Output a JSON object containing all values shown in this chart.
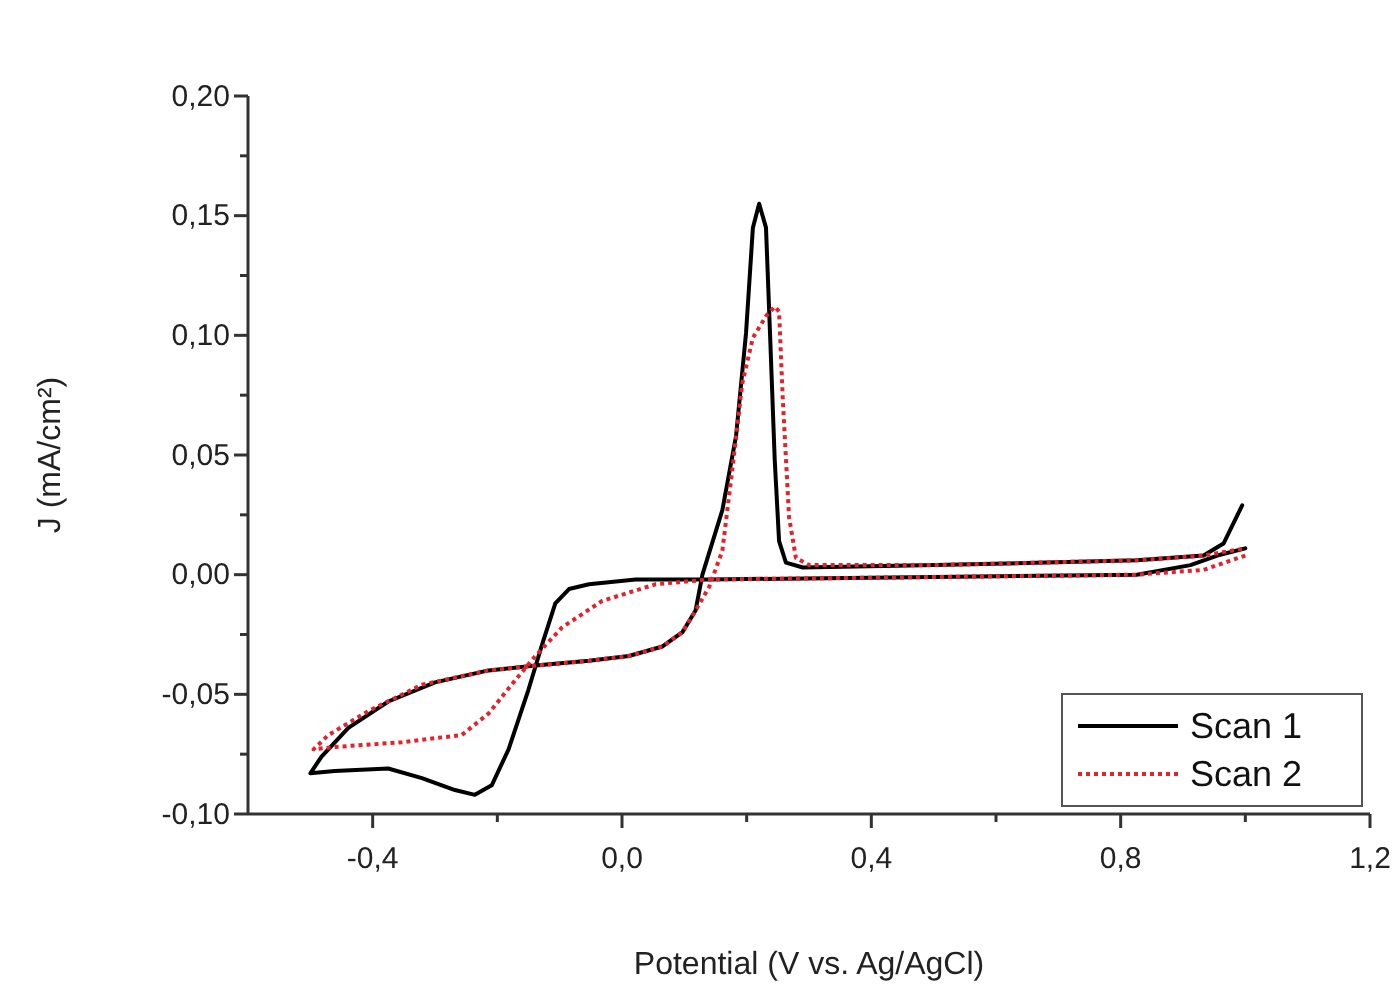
{
  "chart_data": {
    "type": "line",
    "xlabel": "Potential (V vs. Ag/AgCl)",
    "ylabel": "J (mA/cm²)",
    "xlim": [
      -0.6,
      1.2
    ],
    "ylim": [
      -0.1,
      0.2
    ],
    "xticks": [
      {
        "value": -0.4,
        "label": "-0,4"
      },
      {
        "value": -0.2,
        "label": null
      },
      {
        "value": 0,
        "label": "0,0"
      },
      {
        "value": 0.2,
        "label": null
      },
      {
        "value": 0.4,
        "label": "0,4"
      },
      {
        "value": 0.6,
        "label": null
      },
      {
        "value": 0.8,
        "label": "0,8"
      },
      {
        "value": 1.0,
        "label": null
      },
      {
        "value": 1.2,
        "label": "1,2"
      }
    ],
    "yticks": [
      {
        "value": -0.1,
        "label": "-0,10"
      },
      {
        "value": -0.075,
        "label": null
      },
      {
        "value": -0.05,
        "label": "-0,05"
      },
      {
        "value": -0.025,
        "label": null
      },
      {
        "value": 0,
        "label": "0,00"
      },
      {
        "value": 0.025,
        "label": null
      },
      {
        "value": 0.05,
        "label": "0,05"
      },
      {
        "value": 0.075,
        "label": null
      },
      {
        "value": 0.1,
        "label": "0,10"
      },
      {
        "value": 0.125,
        "label": null
      },
      {
        "value": 0.15,
        "label": "0,15"
      },
      {
        "value": 0.175,
        "label": null
      },
      {
        "value": 0.2,
        "label": "0,20"
      }
    ],
    "grid": false,
    "legend": "bottom right",
    "marker": "none",
    "series": [
      {
        "name": "Scan 1",
        "color": "#000000",
        "line_style": "solid",
        "x": [
          1.0,
          0.955,
          0.912,
          0.826,
          0.5,
          0.14,
          0.022,
          -0.053,
          -0.085,
          -0.107,
          -0.128,
          -0.15,
          -0.182,
          -0.209,
          -0.236,
          -0.268,
          -0.321,
          -0.375,
          -0.461,
          -0.5,
          -0.482,
          -0.439,
          -0.375,
          -0.3,
          -0.214,
          -0.139,
          -0.053,
          0.011,
          0.065,
          0.097,
          0.118,
          0.129,
          0.161,
          0.183,
          0.199,
          0.21,
          0.22,
          0.231,
          0.238,
          0.245,
          0.252,
          0.263,
          0.29,
          0.504,
          0.826,
          0.933,
          0.965,
          0.995
        ],
        "values": [
          0.011,
          0.008,
          0.004,
          0.0,
          -0.001,
          -0.002,
          -0.002,
          -0.004,
          -0.006,
          -0.012,
          -0.029,
          -0.048,
          -0.073,
          -0.088,
          -0.092,
          -0.09,
          -0.085,
          -0.081,
          -0.082,
          -0.083,
          -0.076,
          -0.064,
          -0.053,
          -0.045,
          -0.04,
          -0.038,
          -0.036,
          -0.034,
          -0.03,
          -0.024,
          -0.015,
          0.0,
          0.027,
          0.058,
          0.101,
          0.145,
          0.155,
          0.145,
          0.097,
          0.048,
          0.014,
          0.005,
          0.003,
          0.004,
          0.006,
          0.008,
          0.013,
          0.029
        ]
      },
      {
        "name": "Scan 2",
        "color": "#e8202a",
        "line_style": "dotted",
        "x": [
          1.0,
          0.933,
          0.826,
          0.5,
          0.14,
          0.054,
          -0.032,
          -0.096,
          -0.139,
          -0.171,
          -0.214,
          -0.257,
          -0.353,
          -0.461,
          -0.495,
          -0.471,
          -0.407,
          -0.321,
          -0.214,
          -0.139,
          -0.053,
          0.011,
          0.065,
          0.097,
          0.118,
          0.14,
          0.161,
          0.177,
          0.193,
          0.21,
          0.231,
          0.245,
          0.252,
          0.258,
          0.268,
          0.279,
          0.3,
          0.5,
          0.826,
          0.933,
          1.0
        ],
        "values": [
          0.008,
          0.002,
          0.0,
          -0.001,
          -0.002,
          -0.004,
          -0.011,
          -0.022,
          -0.034,
          -0.044,
          -0.058,
          -0.067,
          -0.07,
          -0.072,
          -0.073,
          -0.067,
          -0.057,
          -0.046,
          -0.04,
          -0.038,
          -0.036,
          -0.034,
          -0.03,
          -0.024,
          -0.015,
          -0.005,
          0.01,
          0.044,
          0.08,
          0.099,
          0.108,
          0.112,
          0.11,
          0.073,
          0.024,
          0.007,
          0.004,
          0.004,
          0.006,
          0.008,
          0.011
        ]
      }
    ]
  }
}
